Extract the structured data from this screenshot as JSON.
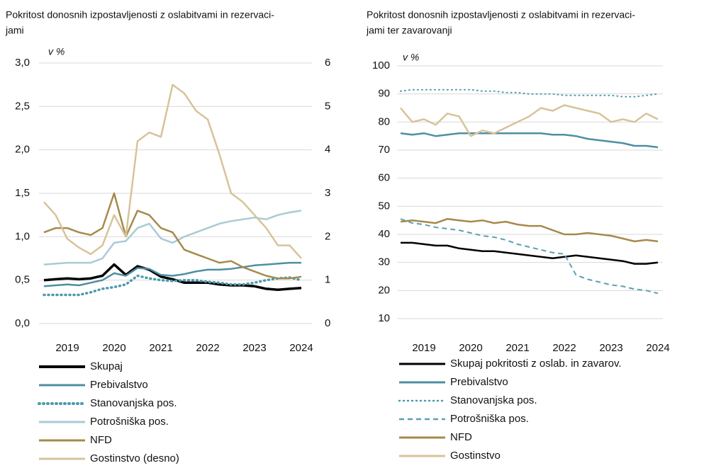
{
  "chart_data": [
    {
      "type": "line",
      "title": [
        "Pokritost donosnih izpostavljenosti z oslabitvami in rezervaci-",
        "jami"
      ],
      "unit_label": "v %",
      "x": [
        2018.5,
        2018.75,
        2019,
        2019.25,
        2019.5,
        2019.75,
        2020,
        2020.25,
        2020.5,
        2020.75,
        2021,
        2021.25,
        2021.5,
        2021.75,
        2022,
        2022.25,
        2022.5,
        2022.75,
        2023,
        2023.25,
        2023.5,
        2023.75,
        2024
      ],
      "xlim": [
        2018.5,
        2024
      ],
      "xticks": [
        2019,
        2020,
        2021,
        2022,
        2023,
        2024
      ],
      "ylim": [
        0,
        3
      ],
      "yticks": [
        {
          "value": 0,
          "label": "0,0"
        },
        {
          "value": 0.5,
          "label": "0,5"
        },
        {
          "value": 1,
          "label": "1,0"
        },
        {
          "value": 1.5,
          "label": "1,5"
        },
        {
          "value": 2,
          "label": "2,0"
        },
        {
          "value": 2.5,
          "label": "2,5"
        },
        {
          "value": 3,
          "label": "3,0"
        }
      ],
      "y2lim": [
        0,
        6
      ],
      "y2ticks": [
        0,
        1,
        2,
        3,
        4,
        5,
        6
      ],
      "grid": true,
      "series": [
        {
          "name": "Skupaj",
          "color": "#000000",
          "style": "solid",
          "width": 3.5,
          "values": [
            0.5,
            0.51,
            0.52,
            0.51,
            0.52,
            0.55,
            0.68,
            0.56,
            0.66,
            0.62,
            0.54,
            0.51,
            0.47,
            0.47,
            0.47,
            0.45,
            0.44,
            0.44,
            0.43,
            0.4,
            0.39,
            0.4,
            0.41
          ]
        },
        {
          "name": "Prebivalstvo",
          "color": "#4f8ea3",
          "style": "solid",
          "width": 2.5,
          "values": [
            0.43,
            0.44,
            0.45,
            0.44,
            0.47,
            0.5,
            0.58,
            0.55,
            0.64,
            0.63,
            0.56,
            0.55,
            0.57,
            0.6,
            0.62,
            0.62,
            0.63,
            0.65,
            0.67,
            0.68,
            0.69,
            0.7,
            0.7
          ]
        },
        {
          "name": "Stanovanjska pos.",
          "color": "#4a9aad",
          "style": "dotted",
          "width": 3.5,
          "values": [
            0.33,
            0.33,
            0.33,
            0.33,
            0.36,
            0.4,
            0.42,
            0.45,
            0.55,
            0.52,
            0.5,
            0.49,
            0.5,
            0.5,
            0.48,
            0.47,
            0.45,
            0.45,
            0.47,
            0.5,
            0.52,
            0.53,
            0.5
          ]
        },
        {
          "name": "Potrošniška pos.",
          "color": "#a9cbd6",
          "style": "solid",
          "width": 2.5,
          "values": [
            0.68,
            0.69,
            0.7,
            0.7,
            0.7,
            0.75,
            0.93,
            0.95,
            1.1,
            1.15,
            0.98,
            0.93,
            1.0,
            1.05,
            1.1,
            1.15,
            1.18,
            1.2,
            1.22,
            1.2,
            1.25,
            1.28,
            1.3
          ]
        },
        {
          "name": "NFD",
          "color": "#a68a4a",
          "style": "solid",
          "width": 2.5,
          "values": [
            1.05,
            1.1,
            1.1,
            1.05,
            1.02,
            1.1,
            1.5,
            1.0,
            1.3,
            1.25,
            1.1,
            1.05,
            0.85,
            0.8,
            0.75,
            0.7,
            0.72,
            0.65,
            0.6,
            0.55,
            0.52,
            0.52,
            0.54
          ]
        },
        {
          "name": "Gostinstvo (desno)",
          "color": "#d7c39a",
          "style": "solid",
          "width": 2.5,
          "axis": "y2",
          "values": [
            2.8,
            2.5,
            1.95,
            1.75,
            1.6,
            1.8,
            2.5,
            2.0,
            4.2,
            4.4,
            4.3,
            5.5,
            5.3,
            4.9,
            4.7,
            3.9,
            3.0,
            2.8,
            2.5,
            2.2,
            1.8,
            1.8,
            1.5
          ]
        }
      ]
    },
    {
      "type": "line",
      "title": [
        "Pokritost donosnih izpostavljenosti z oslabitvami in rezervaci-",
        "jami ter zavarovanji"
      ],
      "unit_label": "v %",
      "x": [
        2018.5,
        2018.75,
        2019,
        2019.25,
        2019.5,
        2019.75,
        2020,
        2020.25,
        2020.5,
        2020.75,
        2021,
        2021.25,
        2021.5,
        2021.75,
        2022,
        2022.25,
        2022.5,
        2022.75,
        2023,
        2023.25,
        2023.5,
        2023.75,
        2024
      ],
      "xlim": [
        2018.5,
        2024
      ],
      "xticks": [
        2019,
        2020,
        2021,
        2022,
        2023,
        2024
      ],
      "ylim": [
        10,
        100
      ],
      "yticks": [
        10,
        20,
        30,
        40,
        50,
        60,
        70,
        80,
        90,
        100
      ],
      "grid": true,
      "series": [
        {
          "name": "Skupaj pokritosti z oslab. in zavarov.",
          "color": "#000000",
          "style": "solid",
          "width": 2.5,
          "values": [
            37,
            37,
            36.5,
            36,
            36,
            35,
            34.5,
            34,
            34,
            33.5,
            33,
            32.5,
            32,
            31.5,
            32,
            32.5,
            32,
            31.5,
            31,
            30.5,
            29.5,
            29.5,
            30
          ]
        },
        {
          "name": "Prebivalstvo",
          "color": "#4f8ea3",
          "style": "solid",
          "width": 2.5,
          "values": [
            76,
            75.5,
            76,
            75,
            75.5,
            76,
            76,
            76,
            76,
            76,
            76,
            76,
            76,
            75.5,
            75.5,
            75,
            74,
            73.5,
            73,
            72.5,
            71.5,
            71.5,
            71
          ]
        },
        {
          "name": "Stanovanjska pos.",
          "color": "#4a9aad",
          "style": "dotted",
          "width": 2,
          "values": [
            91,
            91.5,
            91.5,
            91.5,
            91.5,
            91.5,
            91.5,
            91,
            91,
            90.5,
            90.5,
            90,
            90,
            90,
            89.5,
            89.5,
            89.5,
            89.5,
            89.5,
            89,
            89,
            89.5,
            90
          ]
        },
        {
          "name": "Potrošniška pos.",
          "color": "#5a9fb4",
          "style": "dashed",
          "width": 2,
          "values": [
            45.5,
            44,
            43.5,
            42.5,
            42,
            41.5,
            40.5,
            39.5,
            39,
            38,
            36.5,
            35.5,
            34.5,
            33.5,
            33,
            25.5,
            24,
            23,
            22,
            21.5,
            20.5,
            20,
            19
          ]
        },
        {
          "name": "NFD",
          "color": "#a68a4a",
          "style": "solid",
          "width": 2.5,
          "values": [
            44.5,
            45,
            44.5,
            44,
            45.5,
            45,
            44.5,
            45,
            44,
            44.5,
            43.5,
            43,
            43,
            41.5,
            40,
            40,
            40.5,
            40,
            39.5,
            38.5,
            37.5,
            38,
            37.5
          ]
        },
        {
          "name": "Gostinstvo",
          "color": "#d7c39a",
          "style": "solid",
          "width": 2.5,
          "values": [
            85,
            80,
            81,
            79,
            83,
            82,
            75,
            77,
            76,
            78,
            80,
            82,
            85,
            84,
            86,
            85,
            84,
            83,
            80,
            81,
            80,
            83,
            81
          ]
        }
      ]
    }
  ]
}
